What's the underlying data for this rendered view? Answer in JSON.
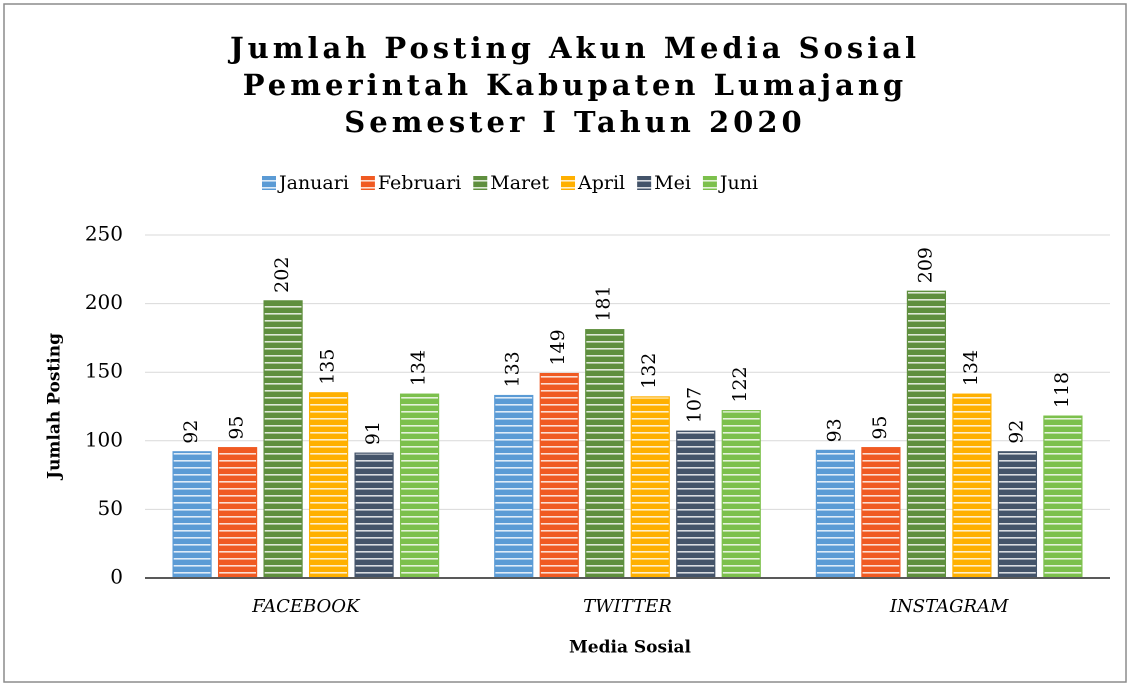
{
  "chart_data": {
    "type": "bar",
    "title": [
      "Jumlah Posting Akun Media Sosial",
      "Pemerintah Kabupaten Lumajang",
      "Semester I Tahun 2020"
    ],
    "x_label": "Media Sosial",
    "y_label": "Jumlah Posting",
    "categories": [
      "FACEBOOK",
      "TWITTER",
      "INSTAGRAM"
    ],
    "series": [
      {
        "name": "Januari",
        "color": "#5b9bd5",
        "values": [
          92,
          133,
          93
        ]
      },
      {
        "name": "Februari",
        "color": "#f05a22",
        "values": [
          95,
          149,
          95
        ]
      },
      {
        "name": "Maret",
        "color": "#5f8f3e",
        "values": [
          202,
          181,
          209
        ]
      },
      {
        "name": "April",
        "color": "#ffb000",
        "values": [
          135,
          132,
          134
        ]
      },
      {
        "name": "Mei",
        "color": "#44546a",
        "values": [
          91,
          107,
          92
        ]
      },
      {
        "name": "Juni",
        "color": "#7cc04c",
        "values": [
          134,
          122,
          118
        ]
      }
    ],
    "ylim": [
      0,
      250
    ],
    "yticks": [
      0,
      50,
      100,
      150,
      200,
      250
    ],
    "grid": true,
    "legend": "top"
  }
}
